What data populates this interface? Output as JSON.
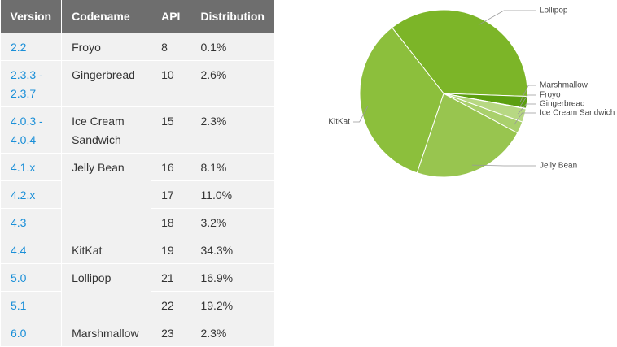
{
  "table": {
    "header": [
      "Version",
      "Codename",
      "API",
      "Distribution"
    ],
    "rows": [
      {
        "version": "2.2",
        "codename": "Froyo",
        "api": "8",
        "distribution": "0.1%"
      },
      {
        "version": "2.3.3 - 2.3.7",
        "codename": "Gingerbread",
        "api": "10",
        "distribution": "2.6%"
      },
      {
        "version": "4.0.3 - 4.0.4",
        "codename": "Ice Cream Sandwich",
        "api": "15",
        "distribution": "2.3%"
      },
      {
        "version": "4.1.x",
        "codename": "Jelly Bean",
        "api": "16",
        "distribution": "8.1%"
      },
      {
        "version": "4.2.x",
        "api": "17",
        "distribution": "11.0%"
      },
      {
        "version": "4.3",
        "api": "18",
        "distribution": "3.2%"
      },
      {
        "version": "4.4",
        "codename": "KitKat",
        "api": "19",
        "distribution": "34.3%"
      },
      {
        "version": "5.0",
        "codename": "Lollipop",
        "api": "21",
        "distribution": "16.9%"
      },
      {
        "version": "5.1",
        "api": "22",
        "distribution": "19.2%"
      },
      {
        "version": "6.0",
        "codename": "Marshmallow",
        "api": "23",
        "distribution": "2.3%"
      }
    ]
  },
  "chart_data": {
    "type": "pie",
    "categories": [
      "Lollipop",
      "Marshmallow",
      "Froyo",
      "Gingerbread",
      "Ice Cream Sandwich",
      "Jelly Bean",
      "KitKat"
    ],
    "values": [
      36.1,
      2.3,
      0.1,
      2.6,
      2.3,
      22.3,
      34.3
    ],
    "colors": [
      "#7cb528",
      "#5c9f10",
      "#c6e09c",
      "#b7d883",
      "#a9d06c",
      "#98c54f",
      "#8cbf3c"
    ]
  }
}
